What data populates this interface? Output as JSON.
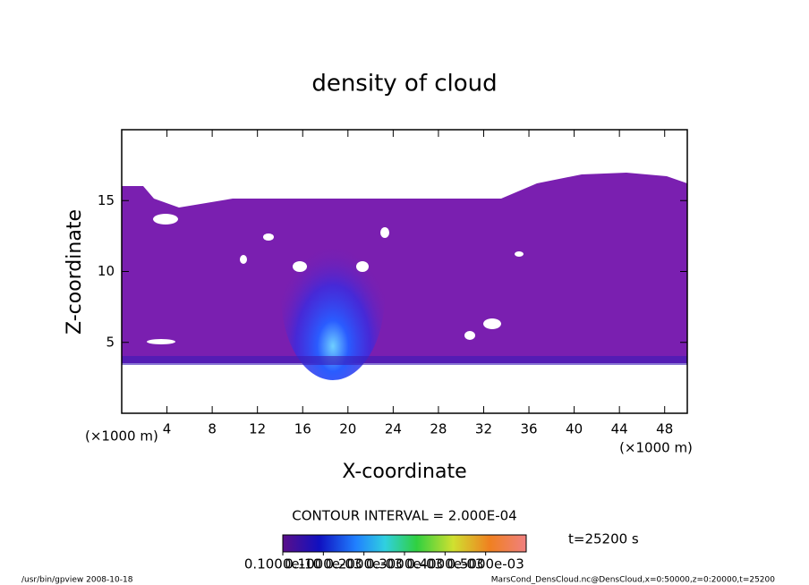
{
  "chart_data": {
    "type": "contour",
    "title": "density of cloud",
    "xlabel": "X-coordinate",
    "ylabel": "Z-coordinate",
    "x_unit_left": "(×1000 m)",
    "x_unit_right": "(×1000 m)",
    "xlim": [
      0,
      50
    ],
    "xticks": [
      4,
      8,
      12,
      16,
      20,
      24,
      28,
      32,
      36,
      40,
      44,
      48
    ],
    "ylim": [
      0,
      20
    ],
    "yticks": [
      5,
      10,
      15
    ],
    "contour_interval": "CONTOUR INTERVAL = 2.000E-04",
    "time_label": "t=25200 s",
    "clim": [
      0,
      0.0006
    ],
    "colorbar_ticks": [
      {
        "value": 1e-11,
        "label": "0.1000e-10"
      },
      {
        "value": 0.0001,
        "label": "0.1000e-03"
      },
      {
        "value": 0.0002,
        "label": "0.2000e-03"
      },
      {
        "value": 0.0003,
        "label": "0.3000e-03"
      },
      {
        "value": 0.0004,
        "label": "0.4000e-03"
      },
      {
        "value": 0.0005,
        "label": "0.5000e-03"
      }
    ],
    "footer_left": "/usr/bin/gpview   2008-10-18",
    "footer_right": "MarsCond_DensCloud.nc@DensCloud,x=0:50000,z=0:20000,t=25200"
  }
}
